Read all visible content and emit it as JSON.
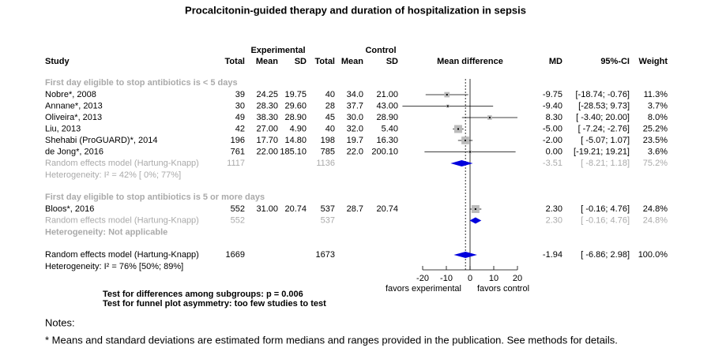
{
  "chart_data": {
    "type": "forest",
    "title": "Procalcitonin-guided therapy and duration of hospitalization in sepsis",
    "header": {
      "experimental": "Experimental",
      "control": "Control",
      "columns": [
        "Study",
        "Total",
        "Mean",
        "SD",
        "Total",
        "Mean",
        "SD",
        "Mean difference",
        "MD",
        "95%-CI",
        "Weight"
      ]
    },
    "groups": [
      {
        "title": "First day eligible to stop antibiotics is < 5 days",
        "studies": [
          {
            "study": "Nobre*, 2008",
            "total_e": "39",
            "mean_e": "24.25",
            "sd_e": "19.75",
            "total_c": "40",
            "mean_c": "34.0",
            "sd_c": "21.00",
            "md": -9.75,
            "md_label": "-9.75",
            "lo": -18.74,
            "hi": -0.76,
            "ci_label": "[-18.74; -0.76]",
            "weight": 11.3,
            "weight_label": "11.3%"
          },
          {
            "study": "Annane*, 2013",
            "total_e": "30",
            "mean_e": "28.30",
            "sd_e": "29.60",
            "total_c": "28",
            "mean_c": "37.7",
            "sd_c": "43.00",
            "md": -9.4,
            "md_label": "-9.40",
            "lo": -28.53,
            "hi": 9.73,
            "ci_label": "[-28.53;  9.73]",
            "weight": 3.7,
            "weight_label": "3.7%"
          },
          {
            "study": "Oliveira*, 2013",
            "total_e": "49",
            "mean_e": "38.30",
            "sd_e": "28.90",
            "total_c": "45",
            "mean_c": "30.0",
            "sd_c": "28.90",
            "md": 8.3,
            "md_label": "8.30",
            "lo": -3.4,
            "hi": 20,
            "ci_label": "[ -3.40; 20.00]",
            "weight": 8,
            "weight_label": "8.0%"
          },
          {
            "study": "Liu, 2013",
            "total_e": "42",
            "mean_e": "27.00",
            "sd_e": "4.90",
            "total_c": "40",
            "mean_c": "32.0",
            "sd_c": "5.40",
            "md": -5,
            "md_label": "-5.00",
            "lo": -7.24,
            "hi": -2.76,
            "ci_label": "[ -7.24; -2.76]",
            "weight": 25.2,
            "weight_label": "25.2%"
          },
          {
            "study": "Shehabi (ProGUARD)*, 2014",
            "total_e": "196",
            "mean_e": "17.70",
            "sd_e": "14.80",
            "total_c": "198",
            "mean_c": "19.7",
            "sd_c": "16.30",
            "md": -2,
            "md_label": "-2.00",
            "lo": -5.07,
            "hi": 1.07,
            "ci_label": "[ -5.07;  1.07]",
            "weight": 23.5,
            "weight_label": "23.5%"
          },
          {
            "study": "de Jong*, 2016",
            "total_e": "761",
            "mean_e": "22.00",
            "sd_e": "185.10",
            "total_c": "785",
            "mean_c": "22.0",
            "sd_c": "200.10",
            "md": 0,
            "md_label": "0.00",
            "lo": -19.21,
            "hi": 19.21,
            "ci_label": "[-19.21; 19.21]",
            "weight": 3.6,
            "weight_label": "3.6%"
          }
        ],
        "pooled": {
          "study": "Random effects model  (Hartung-Knapp)",
          "total_e": "1117",
          "total_c": "1136",
          "md": -3.51,
          "md_label": "-3.51",
          "lo": -8.21,
          "hi": 1.18,
          "ci_label": "[ -8.21;  1.18]",
          "weight": 75.2,
          "weight_label": "75.2%"
        },
        "heterogeneity": "Heterogeneity: I² = 42% [ 0%; 77%]"
      },
      {
        "title": "First day eligible to stop antibiotics is 5 or more days",
        "studies": [
          {
            "study": "Bloos*, 2016",
            "total_e": "552",
            "mean_e": "31.00",
            "sd_e": "20.74",
            "total_c": "537",
            "mean_c": "28.7",
            "sd_c": "20.74",
            "md": 2.3,
            "md_label": "2.30",
            "lo": -0.16,
            "hi": 4.76,
            "ci_label": "[ -0.16;  4.76]",
            "weight": 24.8,
            "weight_label": "24.8%"
          }
        ],
        "pooled": {
          "study": "Random effects model  (Hartung-Knapp)",
          "total_e": "552",
          "total_c": "537",
          "md": 2.3,
          "md_label": "2.30",
          "lo": -0.16,
          "hi": 4.76,
          "ci_label": "[ -0.16;  4.76]",
          "weight": 24.8,
          "weight_label": "24.8%"
        },
        "heterogeneity": "Heterogeneity: Not applicable"
      }
    ],
    "overall": {
      "study": "Random effects model  (Hartung-Knapp)",
      "total_e": "1669",
      "total_c": "1673",
      "md": -1.94,
      "md_label": "-1.94",
      "lo": -6.86,
      "hi": 2.98,
      "ci_label": "[ -6.86;  2.98]",
      "weight": 100,
      "weight_label": "100.0%"
    },
    "overall_heterogeneity": "Heterogeneity: I² = 76% [50%; 89%]",
    "xlim": [
      -20,
      20
    ],
    "xticks": [
      -20,
      -10,
      0,
      10,
      20
    ],
    "favors_left": "favors experimental",
    "favors_right": "favors control",
    "tests": [
      "Test for differences among subgroups: p = 0.006",
      "Test for funnel plot asymmetry: too few studies to test"
    ],
    "square_color": "#bbbbbb",
    "diamond_color": "#0000dd",
    "notes_title": "Notes:",
    "note": "* Means and standard deviations are estimated form medians and ranges provided in the publication. See methods for details."
  }
}
